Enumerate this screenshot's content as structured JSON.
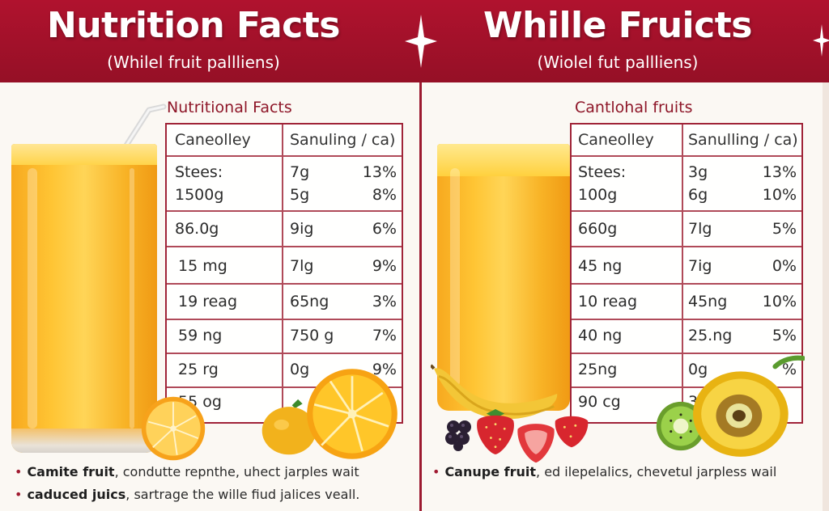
{
  "header": {
    "left_title": "Nutrition Facts",
    "left_subtitle": "(Whilel fruit pallliens)",
    "right_title": "Whille Fruicts",
    "right_subtitle": "(Wiolel fut pallliens)"
  },
  "left_panel": {
    "section_title": "Nutritional Facts",
    "col_header_1": "Caneolley",
    "col_header_2": "Sanuling / ca)",
    "rows": [
      {
        "a": "Stees:",
        "b": "7g",
        "c": "13%"
      },
      {
        "a": "1500g",
        "b": "5g",
        "c": "8%"
      },
      {
        "a": "86.0g",
        "b": "9ig",
        "c": "6%"
      },
      {
        "a": "15 mg",
        "b": "7lg",
        "c": "9%"
      },
      {
        "a": "19 reag",
        "b": "65ng",
        "c": "3%"
      },
      {
        "a": "59 ng",
        "b": "750 g",
        "c": "7%"
      },
      {
        "a": "25 rg",
        "b": "0g",
        "c": "9%"
      },
      {
        "a": "55 og",
        "b": "",
        "c": ""
      }
    ],
    "bullets": [
      {
        "bold": "Camite fruit",
        "rest": ", condutte repnthe, uhect jarples wait"
      },
      {
        "bold": "caduced juics",
        "rest": ", sartrage the wille fiud jalices veall."
      }
    ]
  },
  "right_panel": {
    "section_title": "Cantlohal fruits",
    "col_header_1": "Caneolley",
    "col_header_2": "Sanulling / ca)",
    "rows": [
      {
        "a": "Stees:",
        "b": "3g",
        "c": "13%"
      },
      {
        "a": "100g",
        "b": "6g",
        "c": "10%"
      },
      {
        "a": "660g",
        "b": "7lg",
        "c": "5%"
      },
      {
        "a": "45 ng",
        "b": "7ig",
        "c": "0%"
      },
      {
        "a": "10 reag",
        "b": "45ng",
        "c": "10%"
      },
      {
        "a": "40 ng",
        "b": "25.ng",
        "c": "5%"
      },
      {
        "a": "25ng",
        "b": "0g",
        "c": "%"
      },
      {
        "a": "90 cg",
        "b": "3",
        "c": ""
      }
    ],
    "bullets": [
      {
        "bold": "Canupe fruit",
        "rest": ", ed ilepelalics, chevetul jarpless wail"
      }
    ]
  },
  "colors": {
    "header_red": "#a3132b",
    "table_line": "#b04a59",
    "juice_orange": "#f8b326"
  },
  "icons": [
    "straw-icon",
    "sparkle-icon",
    "orange-slice-icon",
    "lemon-icon",
    "banana-icon",
    "strawberry-icon",
    "blackberry-icon",
    "kiwi-icon",
    "papaya-icon"
  ]
}
